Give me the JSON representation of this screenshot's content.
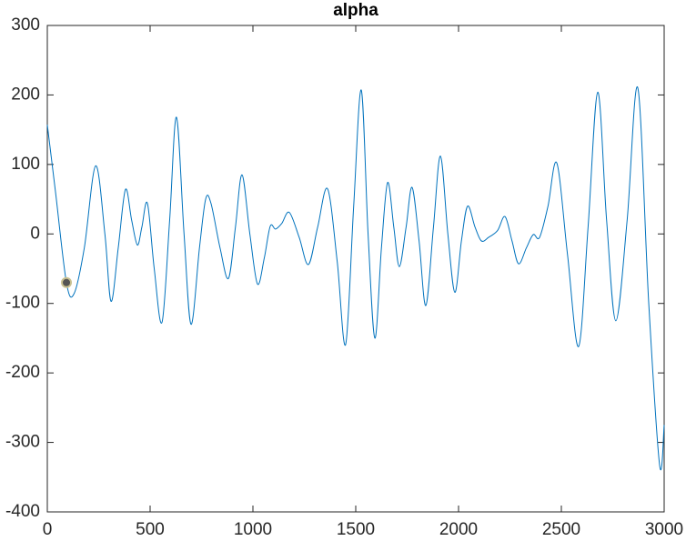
{
  "chart_data": {
    "type": "line",
    "title": "alpha",
    "x": [
      0,
      40,
      93,
      130,
      180,
      235,
      280,
      310,
      345,
      380,
      410,
      438,
      460,
      487,
      520,
      558,
      595,
      628,
      665,
      699,
      740,
      770,
      796,
      840,
      881,
      915,
      947,
      985,
      1022,
      1055,
      1084,
      1110,
      1140,
      1177,
      1225,
      1270,
      1315,
      1363,
      1410,
      1451,
      1490,
      1527,
      1560,
      1593,
      1625,
      1655,
      1685,
      1712,
      1745,
      1774,
      1808,
      1841,
      1878,
      1912,
      1948,
      1982,
      2014,
      2044,
      2080,
      2111,
      2146,
      2190,
      2226,
      2260,
      2292,
      2330,
      2363,
      2394,
      2435,
      2478,
      2530,
      2584,
      2630,
      2677,
      2720,
      2765,
      2820,
      2872,
      2925,
      2978,
      3000
    ],
    "series": [
      {
        "name": "alpha",
        "color": "#0072bd",
        "values": [
          157,
          60,
          -70,
          -86,
          -20,
          98,
          0,
          -97,
          -20,
          64,
          20,
          -16,
          10,
          44,
          -50,
          -127,
          20,
          168,
          0,
          -130,
          -20,
          50,
          44,
          -20,
          -64,
          10,
          85,
          0,
          -72,
          -35,
          11,
          7,
          15,
          31,
          -5,
          -44,
          10,
          65,
          -40,
          -159,
          40,
          207,
          0,
          -150,
          -20,
          74,
          10,
          -47,
          10,
          67,
          -10,
          -103,
          10,
          112,
          0,
          -84,
          -10,
          40,
          10,
          -10,
          -5,
          5,
          25,
          -10,
          -43,
          -20,
          -1,
          -5,
          40,
          102,
          -30,
          -162,
          10,
          204,
          20,
          -125,
          20,
          210,
          -100,
          -333,
          -275
        ]
      }
    ],
    "highlight": {
      "x": 93,
      "y": -70,
      "color": "#555555"
    },
    "xlim": [
      0,
      3000
    ],
    "xticks": [
      0,
      500,
      1000,
      1500,
      2000,
      2500,
      3000
    ],
    "ylim": [
      -400,
      300
    ],
    "yticks": [
      -400,
      -300,
      -200,
      -100,
      0,
      100,
      200,
      300
    ]
  }
}
